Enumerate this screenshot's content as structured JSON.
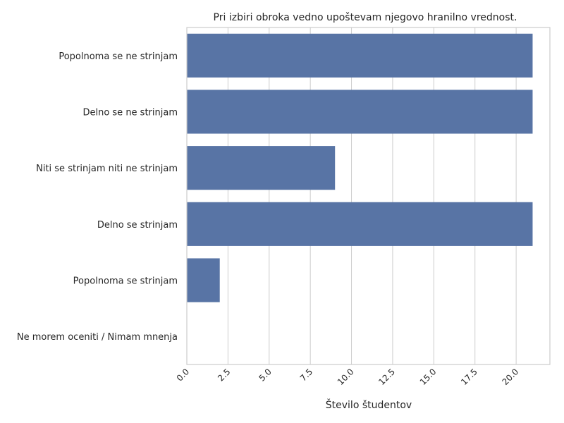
{
  "chart_data": {
    "type": "bar",
    "orientation": "horizontal",
    "title": "Pri izbiri obroka vedno upoštevam njegovo hranilno vrednost.",
    "xlabel": "Število študentov",
    "ylabel": "",
    "categories": [
      "Popolnoma se ne strinjam",
      "Delno se ne strinjam",
      "Niti se strinjam niti ne strinjam",
      "Delno se strinjam",
      "Popolnoma se strinjam",
      "Ne morem oceniti / Nimam mnenja"
    ],
    "values": [
      21,
      21,
      9,
      21,
      2,
      0
    ],
    "xlim": [
      0,
      22.05
    ],
    "xticks": [
      "0.0",
      "2.5",
      "5.0",
      "7.5",
      "10.0",
      "12.5",
      "15.0",
      "17.5",
      "20.0"
    ],
    "grid": "vertical",
    "bar_color": "#5874a5",
    "grid_color": "#cccccc",
    "spine_color": "#cccccc"
  }
}
